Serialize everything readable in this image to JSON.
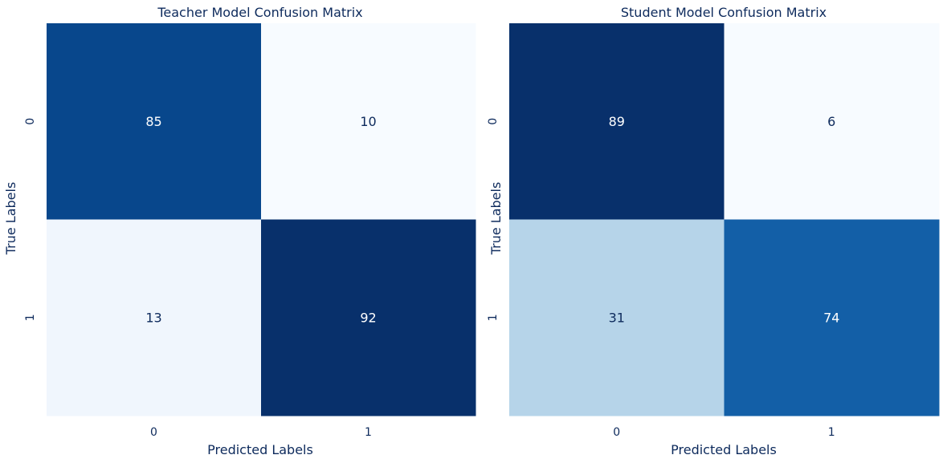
{
  "chart_data": [
    {
      "type": "heatmap",
      "title": "Teacher Model Confusion Matrix",
      "xlabel": "Predicted Labels",
      "ylabel": "True Labels",
      "x_categories": [
        "0",
        "1"
      ],
      "y_categories": [
        "0",
        "1"
      ],
      "values": [
        [
          85,
          10
        ],
        [
          13,
          92
        ]
      ],
      "colormap": "Blues",
      "vmin": 10,
      "vmax": 92,
      "colorbar": false
    },
    {
      "type": "heatmap",
      "title": "Student Model Confusion Matrix",
      "xlabel": "Predicted Labels",
      "ylabel": "True Labels",
      "x_categories": [
        "0",
        "1"
      ],
      "y_categories": [
        "0",
        "1"
      ],
      "values": [
        [
          89,
          6
        ],
        [
          31,
          74
        ]
      ],
      "colormap": "Blues",
      "vmin": 6,
      "vmax": 89,
      "colorbar": false
    }
  ],
  "colors": {
    "text_dark": "#0d2a5c",
    "text_light": "#ffffff",
    "blues": [
      "#f7fbff",
      "#deebf7",
      "#c6dbef",
      "#9ecae1",
      "#6baed6",
      "#4292c6",
      "#2171b5",
      "#08519c",
      "#08306b"
    ]
  }
}
